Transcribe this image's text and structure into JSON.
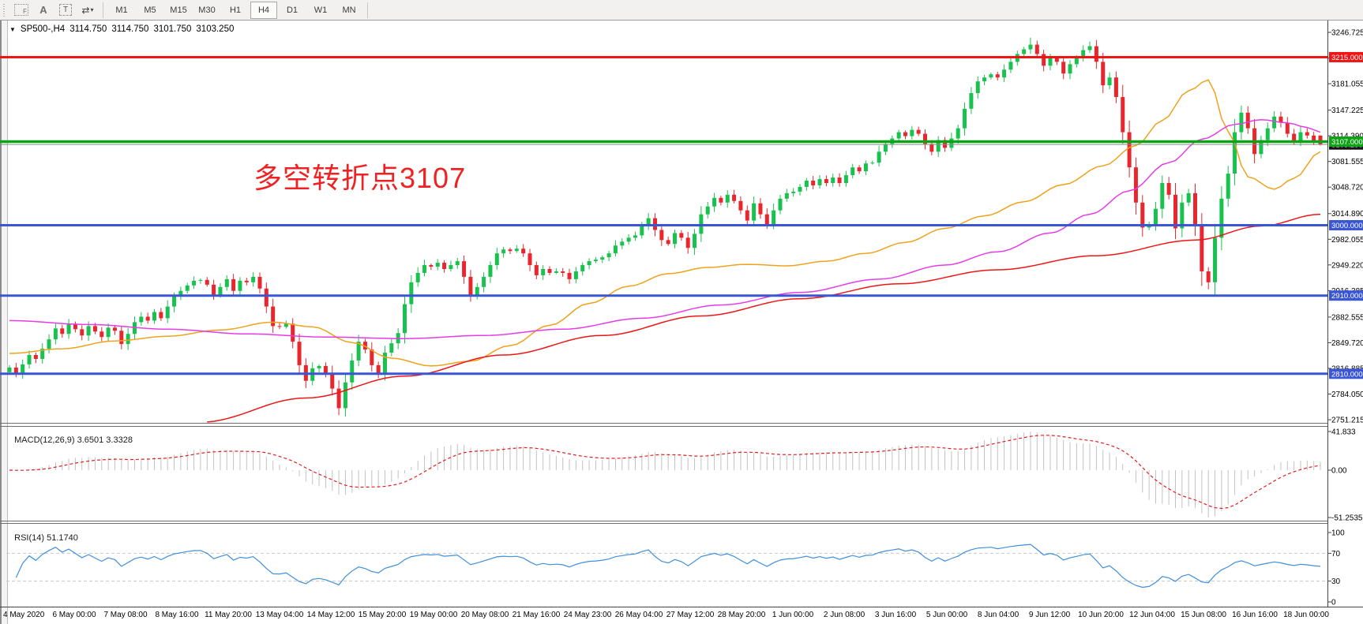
{
  "toolbar": {
    "tools": [
      {
        "name": "freehand-tool",
        "glyph": "F"
      },
      {
        "name": "text-label-tool",
        "glyph": "A"
      },
      {
        "name": "text-box-tool",
        "glyph": "T"
      },
      {
        "name": "cursor-tool",
        "glyph": "⇄"
      },
      {
        "name": "cursor-dropdown",
        "glyph": "▾"
      }
    ],
    "timeframes": [
      "M1",
      "M5",
      "M15",
      "M30",
      "H1",
      "H4",
      "D1",
      "W1",
      "MN"
    ],
    "active_timeframe": "H4"
  },
  "title_bar": {
    "collapse_glyph": "▼",
    "symbol_period": "SP500-,H4",
    "open": "3114.750",
    "high": "3114.750",
    "low": "3101.750",
    "close": "3103.250"
  },
  "annotation": {
    "text": "多空转折点3107",
    "color": "#ee2222"
  },
  "chart_data": {
    "type": "candlestick",
    "symbol": "SP500-",
    "timeframe": "H4",
    "price_axis": {
      "ticks": [
        "3246.725",
        "3213.890",
        "3181.055",
        "3147.225",
        "3114.390",
        "3081.555",
        "3048.720",
        "3014.890",
        "2982.055",
        "2949.220",
        "2916.385",
        "2882.555",
        "2849.720",
        "2816.885",
        "2784.050",
        "2751.215"
      ]
    },
    "h_lines": [
      {
        "price": 3215.0,
        "label": "3215.000",
        "color": "#ee1515",
        "width": 3
      },
      {
        "price": 3107.0,
        "label": "3107.000",
        "color": "#0ea216",
        "width": 3.5
      },
      {
        "price": 3000.0,
        "label": "3000.000",
        "color": "#3a56d4",
        "width": 3
      },
      {
        "price": 2910.0,
        "label": "2910.000",
        "color": "#3a56d4",
        "width": 3
      },
      {
        "price": 2810.0,
        "label": "2810.000",
        "color": "#3a56d4",
        "width": 3
      }
    ],
    "bid_line": {
      "price": 3103.25,
      "label": "3103.250",
      "line_color": "#8a8a8a",
      "badge_color": "#141414"
    },
    "candles": {
      "up_color": "#19c24f",
      "down_color": "#e8262d",
      "first_open": 2812,
      "closes": [
        2818,
        2809,
        2822,
        2834,
        2829,
        2842,
        2854,
        2868,
        2861,
        2874,
        2867,
        2859,
        2871,
        2864,
        2857,
        2869,
        2865,
        2848,
        2861,
        2876,
        2883,
        2878,
        2889,
        2881,
        2896,
        2909,
        2916,
        2923,
        2929,
        2930,
        2924,
        2911,
        2921,
        2931,
        2916,
        2929,
        2927,
        2934,
        2919,
        2896,
        2871,
        2870,
        2874,
        2851,
        2821,
        2801,
        2817,
        2820,
        2811,
        2791,
        2766,
        2799,
        2827,
        2851,
        2841,
        2821,
        2811,
        2837,
        2849,
        2862,
        2899,
        2927,
        2939,
        2949,
        2947,
        2952,
        2944,
        2949,
        2954,
        2934,
        2911,
        2921,
        2934,
        2949,
        2964,
        2969,
        2967,
        2970,
        2964,
        2949,
        2936,
        2944,
        2939,
        2941,
        2939,
        2931,
        2941,
        2949,
        2954,
        2956,
        2959,
        2964,
        2974,
        2979,
        2984,
        2987,
        2999,
        3009,
        2994,
        2981,
        2976,
        2990,
        2984,
        2971,
        2989,
        3014,
        3024,
        3035,
        3029,
        3039,
        3031,
        3019,
        3006,
        3028,
        3014,
        3001,
        3019,
        3034,
        3041,
        3043,
        3049,
        3057,
        3051,
        3059,
        3054,
        3061,
        3054,
        3064,
        3074,
        3069,
        3079,
        3080,
        3094,
        3104,
        3111,
        3119,
        3114,
        3122,
        3117,
        3104,
        3094,
        3109,
        3099,
        3111,
        3124,
        3149,
        3169,
        3184,
        3189,
        3193,
        3189,
        3199,
        3209,
        3219,
        3225,
        3231,
        3219,
        3204,
        3214,
        3209,
        3194,
        3206,
        3214,
        3224,
        3229,
        3209,
        3179,
        3189,
        3164,
        3119,
        3074,
        3029,
        2997,
        3001,
        3021,
        3054,
        3039,
        2996,
        3029,
        3041,
        2999,
        2941,
        2927,
        2984,
        3034,
        3066,
        3119,
        3144,
        3124,
        3091,
        3109,
        3124,
        3139,
        3131,
        3117,
        3107,
        3119,
        3114.75,
        3108,
        3103.25
      ],
      "pinned_extremes": [
        [
          50,
          "low",
          2757
        ],
        [
          155,
          "high",
          3240
        ],
        [
          164,
          "high",
          3235
        ],
        [
          182,
          "low",
          2918
        ]
      ],
      "last_ohlc": [
        3114.75,
        3114.75,
        3101.75,
        3103.25
      ]
    },
    "ma_lines": [
      {
        "name": "ma-fast-orange",
        "color": "#efa21b",
        "points": [
          [
            0,
            2836
          ],
          [
            8,
            2842
          ],
          [
            16,
            2852
          ],
          [
            24,
            2858
          ],
          [
            32,
            2866
          ],
          [
            40,
            2876
          ],
          [
            46,
            2870
          ],
          [
            52,
            2850
          ],
          [
            58,
            2830
          ],
          [
            64,
            2820
          ],
          [
            70,
            2826
          ],
          [
            76,
            2846
          ],
          [
            82,
            2872
          ],
          [
            88,
            2900
          ],
          [
            94,
            2922
          ],
          [
            100,
            2938
          ],
          [
            106,
            2946
          ],
          [
            112,
            2950
          ],
          [
            118,
            2948
          ],
          [
            124,
            2954
          ],
          [
            130,
            2964
          ],
          [
            136,
            2978
          ],
          [
            142,
            2996
          ],
          [
            148,
            3012
          ],
          [
            154,
            3030
          ],
          [
            160,
            3052
          ],
          [
            166,
            3076
          ],
          [
            171,
            3102
          ],
          [
            175,
            3134
          ],
          [
            179,
            3172
          ],
          [
            182,
            3186
          ],
          [
            185,
            3120
          ],
          [
            188,
            3062
          ],
          [
            192,
            3046
          ],
          [
            195,
            3060
          ],
          [
            199,
            3094
          ]
        ]
      },
      {
        "name": "ma-mid-magenta",
        "color": "#e53ce5",
        "points": [
          [
            0,
            2878
          ],
          [
            12,
            2873
          ],
          [
            24,
            2867
          ],
          [
            36,
            2861
          ],
          [
            48,
            2857
          ],
          [
            60,
            2855
          ],
          [
            72,
            2859
          ],
          [
            84,
            2867
          ],
          [
            96,
            2881
          ],
          [
            108,
            2898
          ],
          [
            120,
            2914
          ],
          [
            132,
            2931
          ],
          [
            142,
            2949
          ],
          [
            150,
            2966
          ],
          [
            158,
            2990
          ],
          [
            164,
            3014
          ],
          [
            170,
            3044
          ],
          [
            176,
            3080
          ],
          [
            181,
            3110
          ],
          [
            186,
            3129
          ],
          [
            190,
            3135
          ],
          [
            194,
            3131
          ],
          [
            197,
            3125
          ],
          [
            199,
            3119
          ]
        ]
      },
      {
        "name": "ma-slow-red",
        "color": "#ee1515",
        "points": [
          [
            29,
            2748
          ],
          [
            45,
            2779
          ],
          [
            60,
            2807
          ],
          [
            75,
            2834
          ],
          [
            90,
            2859
          ],
          [
            105,
            2884
          ],
          [
            120,
            2906
          ],
          [
            135,
            2925
          ],
          [
            150,
            2943
          ],
          [
            165,
            2961
          ],
          [
            180,
            2981
          ],
          [
            190,
            2999
          ],
          [
            199,
            3014
          ]
        ]
      }
    ],
    "macd": {
      "name": "MACD(12,26,9)",
      "values": "3.6501 3.3328",
      "fast": 12,
      "slow": 26,
      "signal": 9,
      "axis_labels": [
        {
          "v": 41.833,
          "label": "41.833"
        },
        {
          "v": 0,
          "label": "0.00"
        },
        {
          "v": -51.2535,
          "label": "-51.2535"
        }
      ],
      "histogram_color": "#c2c2c2",
      "signal_color": "#e02020"
    },
    "rsi": {
      "name": "RSI(14)",
      "value": "51.1740",
      "period": 14,
      "axis_labels": [
        {
          "v": 100,
          "label": "100"
        },
        {
          "v": 70,
          "label": "70"
        },
        {
          "v": 30,
          "label": "30"
        },
        {
          "v": 0,
          "label": "0"
        }
      ],
      "levels": [
        70,
        30
      ],
      "line_color": "#3f8fdc",
      "level_color": "#c8c8c8"
    },
    "time_axis": {
      "labels": [
        "4 May 2020",
        "6 May 00:00",
        "7 May 08:00",
        "8 May 16:00",
        "11 May 20:00",
        "13 May 04:00",
        "14 May 12:00",
        "15 May 20:00",
        "19 May 00:00",
        "20 May 08:00",
        "21 May 16:00",
        "24 May 23:00",
        "26 May 04:00",
        "27 May 12:00",
        "28 May 20:00",
        "1 Jun 00:00",
        "2 Jun 08:00",
        "3 Jun 16:00",
        "5 Jun 00:00",
        "8 Jun 04:00",
        "9 Jun 12:00",
        "10 Jun 20:00",
        "12 Jun 04:00",
        "15 Jun 08:00",
        "16 Jun 16:00",
        "18 Jun 00:00"
      ]
    }
  }
}
